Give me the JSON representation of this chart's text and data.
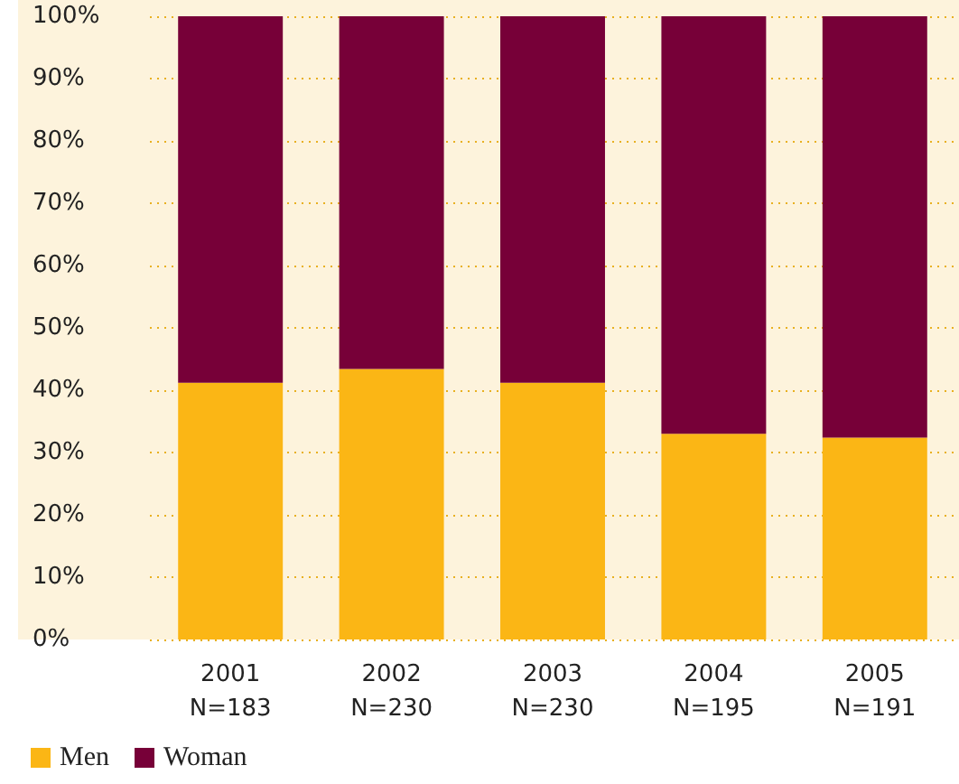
{
  "chart_data": {
    "type": "bar",
    "stacked": true,
    "categories": [
      "2001\nN=183",
      "2002\nN=230",
      "2003\nN=230",
      "2004\nN=195",
      "2005\nN=191"
    ],
    "series": [
      {
        "name": "Men",
        "color": "#fbb615",
        "values": [
          41.2,
          43.4,
          41.2,
          33.0,
          32.4
        ]
      },
      {
        "name": "Woman",
        "color": "#770038",
        "values": [
          58.8,
          56.6,
          58.8,
          67.0,
          67.6
        ]
      }
    ],
    "ylim": [
      0,
      100
    ],
    "yticks": [
      {
        "value": 0,
        "label": "0%"
      },
      {
        "value": 10,
        "label": "10%"
      },
      {
        "value": 20,
        "label": "20%"
      },
      {
        "value": 30,
        "label": "30%"
      },
      {
        "value": 40,
        "label": "40%"
      },
      {
        "value": 50,
        "label": "50%"
      },
      {
        "value": 60,
        "label": "60%"
      },
      {
        "value": 70,
        "label": "70%"
      },
      {
        "value": 80,
        "label": "80%"
      },
      {
        "value": 90,
        "label": "90%"
      },
      {
        "value": 100,
        "label": "100%"
      }
    ],
    "grid": "y",
    "legend": "bottom left"
  }
}
